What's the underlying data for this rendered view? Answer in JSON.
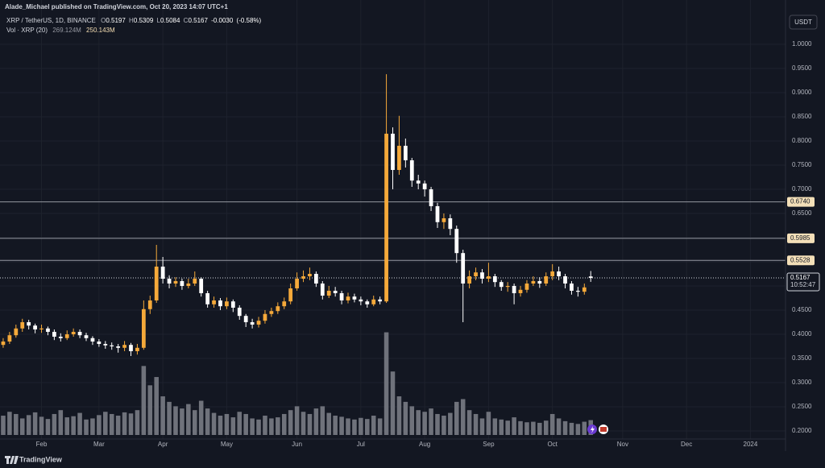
{
  "chart_data": {
    "type": "candlestick",
    "header": "Alade_Michael published on TradingView.com, Oct 20, 2023 14:07 UTC+1",
    "symbol": "XRP / TetherUS, 1D, BINANCE",
    "ohlc_labels": [
      "O",
      "H",
      "L",
      "C"
    ],
    "change": {
      "value": -0.003,
      "label": "-0.0030"
    },
    "change_percent": {
      "value": -0.58,
      "label": "(-0.58%)"
    },
    "volume_title": "Vol · XRP (20)",
    "volume_last": {
      "value": 269.124,
      "label": "269.124M"
    },
    "volume_ma": {
      "value": 250.143,
      "label": "250.143M"
    },
    "currency": "USDT",
    "countdown": "10:52:47",
    "brand": "TradingView",
    "categories": [
      null,
      null,
      null,
      null,
      null,
      null,
      "Feb",
      null,
      null,
      null,
      null,
      null,
      null,
      null,
      null,
      "Mar",
      null,
      null,
      null,
      null,
      null,
      null,
      null,
      null,
      null,
      "Apr",
      null,
      null,
      null,
      null,
      null,
      null,
      null,
      null,
      null,
      "May",
      null,
      null,
      null,
      null,
      null,
      null,
      null,
      null,
      null,
      null,
      "Jun",
      null,
      null,
      null,
      null,
      null,
      null,
      null,
      null,
      null,
      "Jul",
      null,
      null,
      null,
      null,
      null,
      null,
      null,
      null,
      null,
      "Aug",
      null,
      null,
      null,
      null,
      null,
      null,
      null,
      null,
      null,
      "Sep",
      null,
      null,
      null,
      null,
      null,
      null,
      null,
      null,
      null,
      "Oct",
      null,
      null,
      null,
      null,
      null,
      null,
      null,
      null,
      null,
      null,
      "Nov",
      null,
      null,
      null,
      null,
      null,
      null,
      null,
      null,
      null,
      "Dec",
      null,
      null,
      null,
      null,
      null,
      null,
      null,
      null,
      null,
      "2024",
      null,
      null,
      null,
      null,
      null
    ],
    "open": [
      0.378,
      0.385,
      0.398,
      0.412,
      0.425,
      0.418,
      0.41,
      0.412,
      0.405,
      0.395,
      0.392,
      0.4,
      0.405,
      0.398,
      0.392,
      0.385,
      0.38,
      0.377,
      0.375,
      0.372,
      0.378,
      0.365,
      0.372,
      0.452,
      0.47,
      0.54,
      0.515,
      0.505,
      0.51,
      0.5,
      0.505,
      0.515,
      0.485,
      0.462,
      0.47,
      0.458,
      0.468,
      0.455,
      0.438,
      0.425,
      0.42,
      0.428,
      0.442,
      0.448,
      0.458,
      0.468,
      0.495,
      0.515,
      0.52,
      0.525,
      0.505,
      0.48,
      0.49,
      0.485,
      0.47,
      0.478,
      0.472,
      0.468,
      0.462,
      0.472,
      0.468,
      0.815,
      0.74,
      0.79,
      0.76,
      0.718,
      0.712,
      0.7,
      0.665,
      0.632,
      0.64,
      0.618,
      0.568,
      0.505,
      0.52,
      0.528,
      0.515,
      0.52,
      0.508,
      0.498,
      0.5,
      0.485,
      0.492,
      0.505,
      0.51,
      0.505,
      0.52,
      0.53,
      0.52,
      0.505,
      0.49,
      0.488,
      0.5197,
      null,
      null,
      null,
      null,
      null,
      null,
      null,
      null,
      null,
      null,
      null,
      null,
      null,
      null,
      null,
      null,
      null,
      null,
      null,
      null,
      null,
      null,
      null,
      null,
      null,
      null,
      null,
      null,
      null,
      null
    ],
    "high": [
      0.392,
      0.405,
      0.42,
      0.432,
      0.43,
      0.422,
      0.42,
      0.416,
      0.41,
      0.402,
      0.408,
      0.412,
      0.41,
      0.403,
      0.396,
      0.39,
      0.386,
      0.383,
      0.38,
      0.386,
      0.382,
      0.38,
      0.47,
      0.48,
      0.585,
      0.56,
      0.522,
      0.518,
      0.515,
      0.515,
      0.53,
      0.518,
      0.49,
      0.478,
      0.475,
      0.476,
      0.472,
      0.46,
      0.442,
      0.432,
      0.436,
      0.45,
      0.455,
      0.466,
      0.476,
      0.505,
      0.528,
      0.532,
      0.538,
      0.53,
      0.51,
      0.5,
      0.498,
      0.49,
      0.486,
      0.484,
      0.478,
      0.472,
      0.48,
      0.478,
      0.938,
      0.828,
      0.852,
      0.805,
      0.765,
      0.73,
      0.718,
      0.705,
      0.672,
      0.65,
      0.648,
      0.625,
      0.575,
      0.532,
      0.538,
      0.535,
      0.548,
      0.525,
      0.512,
      0.508,
      0.505,
      0.5,
      0.512,
      0.52,
      0.518,
      0.528,
      0.545,
      0.54,
      0.525,
      0.51,
      0.498,
      0.505,
      0.5309,
      null,
      null,
      null,
      null,
      null,
      null,
      null,
      null,
      null,
      null,
      null,
      null,
      null,
      null,
      null,
      null,
      null,
      null,
      null,
      null,
      null,
      null,
      null,
      null,
      null,
      null,
      null,
      null,
      null,
      null
    ],
    "low": [
      0.372,
      0.38,
      0.393,
      0.405,
      0.41,
      0.402,
      0.403,
      0.398,
      0.388,
      0.385,
      0.388,
      0.395,
      0.392,
      0.386,
      0.378,
      0.374,
      0.37,
      0.368,
      0.362,
      0.365,
      0.355,
      0.358,
      0.368,
      0.442,
      0.465,
      0.505,
      0.495,
      0.498,
      0.492,
      0.495,
      0.5,
      0.478,
      0.455,
      0.455,
      0.45,
      0.452,
      0.446,
      0.43,
      0.415,
      0.412,
      0.414,
      0.422,
      0.436,
      0.442,
      0.452,
      0.462,
      0.49,
      0.508,
      0.512,
      0.498,
      0.472,
      0.475,
      0.478,
      0.462,
      0.464,
      0.466,
      0.46,
      0.455,
      0.458,
      0.462,
      0.465,
      0.7,
      0.73,
      0.745,
      0.705,
      0.7,
      0.685,
      0.655,
      0.62,
      0.618,
      0.605,
      0.548,
      0.425,
      0.495,
      0.512,
      0.505,
      0.508,
      0.498,
      0.49,
      0.488,
      0.462,
      0.478,
      0.486,
      0.5,
      0.496,
      0.5,
      0.512,
      0.512,
      0.495,
      0.482,
      0.478,
      0.482,
      0.5084,
      null,
      null,
      null,
      null,
      null,
      null,
      null,
      null,
      null,
      null,
      null,
      null,
      null,
      null,
      null,
      null,
      null,
      null,
      null,
      null,
      null,
      null,
      null,
      null,
      null,
      null,
      null,
      null,
      null,
      null
    ],
    "close": [
      0.385,
      0.398,
      0.412,
      0.425,
      0.418,
      0.41,
      0.412,
      0.405,
      0.395,
      0.392,
      0.4,
      0.405,
      0.398,
      0.392,
      0.385,
      0.38,
      0.377,
      0.375,
      0.372,
      0.378,
      0.365,
      0.372,
      0.452,
      0.47,
      0.54,
      0.515,
      0.505,
      0.51,
      0.5,
      0.505,
      0.515,
      0.485,
      0.462,
      0.47,
      0.458,
      0.468,
      0.455,
      0.438,
      0.425,
      0.42,
      0.428,
      0.442,
      0.448,
      0.458,
      0.468,
      0.495,
      0.515,
      0.52,
      0.525,
      0.505,
      0.48,
      0.49,
      0.485,
      0.47,
      0.478,
      0.472,
      0.468,
      0.462,
      0.472,
      0.468,
      0.815,
      0.74,
      0.79,
      0.76,
      0.718,
      0.712,
      0.7,
      0.665,
      0.632,
      0.64,
      0.618,
      0.568,
      0.505,
      0.52,
      0.528,
      0.515,
      0.52,
      0.508,
      0.498,
      0.5,
      0.485,
      0.492,
      0.505,
      0.51,
      0.505,
      0.52,
      0.53,
      0.52,
      0.505,
      0.49,
      0.488,
      0.497,
      0.5167,
      null,
      null,
      null,
      null,
      null,
      null,
      null,
      null,
      null,
      null,
      null,
      null,
      null,
      null,
      null,
      null,
      null,
      null,
      null,
      null,
      null,
      null,
      null,
      null,
      null,
      null,
      null,
      null,
      null,
      null
    ],
    "volume": [
      350,
      420,
      380,
      300,
      360,
      410,
      330,
      290,
      380,
      450,
      320,
      340,
      400,
      280,
      300,
      360,
      420,
      380,
      350,
      410,
      390,
      450,
      1250,
      900,
      1050,
      700,
      600,
      520,
      480,
      560,
      450,
      620,
      480,
      400,
      350,
      380,
      320,
      420,
      380,
      300,
      280,
      350,
      300,
      320,
      380,
      450,
      520,
      420,
      380,
      480,
      520,
      400,
      350,
      330,
      300,
      280,
      310,
      290,
      350,
      300,
      1860,
      1150,
      700,
      600,
      520,
      450,
      420,
      480,
      380,
      350,
      400,
      600,
      650,
      450,
      380,
      300,
      420,
      300,
      280,
      260,
      320,
      250,
      230,
      240,
      220,
      260,
      380,
      300,
      250,
      220,
      200,
      240,
      269.124,
      null,
      null,
      null,
      null,
      null,
      null,
      null,
      null,
      null,
      null,
      null,
      null,
      null,
      null,
      null,
      null,
      null,
      null,
      null,
      null,
      null,
      null,
      null,
      null,
      null,
      null,
      null,
      null,
      null,
      null
    ],
    "up_color": "#f5a93a",
    "down_color": "#ffffff",
    "volume_color": "#6f727b",
    "ylim": [
      0.1833,
      1.0783
    ],
    "volume_ylim": [
      0,
      2700
    ],
    "yticks": [
      {
        "value": 0.2,
        "label": "0.2000"
      },
      {
        "value": 0.25,
        "label": "0.2500"
      },
      {
        "value": 0.3,
        "label": "0.3000"
      },
      {
        "value": 0.35,
        "label": "0.3500"
      },
      {
        "value": 0.4,
        "label": "0.4000"
      },
      {
        "value": 0.45,
        "label": "0.4500"
      },
      {
        "value": 0.5,
        "label": "0.5000"
      },
      {
        "value": 0.55,
        "label": "0.5500"
      },
      {
        "value": 0.6,
        "label": "0.6000"
      },
      {
        "value": 0.65,
        "label": "0.6500"
      },
      {
        "value": 0.7,
        "label": "0.7000"
      },
      {
        "value": 0.75,
        "label": "0.7500"
      },
      {
        "value": 0.8,
        "label": "0.8000"
      },
      {
        "value": 0.85,
        "label": "0.8500"
      },
      {
        "value": 0.9,
        "label": "0.9000"
      },
      {
        "value": 0.95,
        "label": "0.9500"
      },
      {
        "value": 1,
        "label": "1.0000"
      }
    ],
    "levels": [
      {
        "value": 0.674,
        "label": "0.6740"
      },
      {
        "value": 0.5985,
        "label": "0.5985"
      },
      {
        "value": 0.5528,
        "label": "0.5528"
      }
    ],
    "grid": true
  }
}
